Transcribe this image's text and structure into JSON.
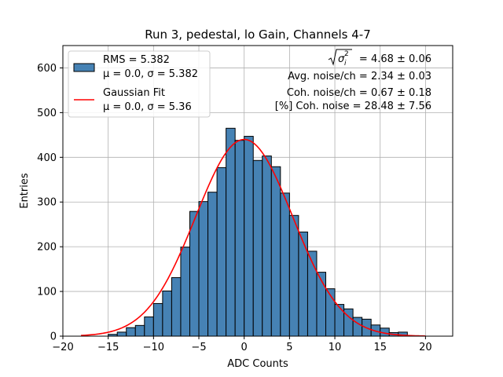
{
  "chart_data": {
    "type": "bar",
    "title": "Run 3, pedestal, lo Gain, Channels 4-7",
    "xlabel": "ADC Counts",
    "ylabel": "Entries",
    "xlim": [
      -20,
      23
    ],
    "ylim": [
      0,
      650
    ],
    "xticks": [
      -20,
      -15,
      -10,
      -5,
      0,
      5,
      10,
      15,
      20
    ],
    "yticks": [
      0,
      100,
      200,
      300,
      400,
      500,
      600
    ],
    "grid": true,
    "legend_position": "top-left",
    "bar_color": "#4682b4",
    "bin_width": 1,
    "bins": [
      {
        "left": -15,
        "count": 4
      },
      {
        "left": -14,
        "count": 9
      },
      {
        "left": -13,
        "count": 19
      },
      {
        "left": -12,
        "count": 24
      },
      {
        "left": -11,
        "count": 43
      },
      {
        "left": -10,
        "count": 73
      },
      {
        "left": -9,
        "count": 101
      },
      {
        "left": -8,
        "count": 131
      },
      {
        "left": -7,
        "count": 199
      },
      {
        "left": -6,
        "count": 279
      },
      {
        "left": -5,
        "count": 301
      },
      {
        "left": -4,
        "count": 322
      },
      {
        "left": -3,
        "count": 377
      },
      {
        "left": -2,
        "count": 465
      },
      {
        "left": -1,
        "count": 438
      },
      {
        "left": 0,
        "count": 447
      },
      {
        "left": 1,
        "count": 393
      },
      {
        "left": 2,
        "count": 403
      },
      {
        "left": 3,
        "count": 379
      },
      {
        "left": 4,
        "count": 320
      },
      {
        "left": 5,
        "count": 270
      },
      {
        "left": 6,
        "count": 233
      },
      {
        "left": 7,
        "count": 190
      },
      {
        "left": 8,
        "count": 143
      },
      {
        "left": 9,
        "count": 106
      },
      {
        "left": 10,
        "count": 71
      },
      {
        "left": 11,
        "count": 61
      },
      {
        "left": 12,
        "count": 42
      },
      {
        "left": 13,
        "count": 38
      },
      {
        "left": 14,
        "count": 25
      },
      {
        "left": 15,
        "count": 18
      },
      {
        "left": 16,
        "count": 8
      },
      {
        "left": 17,
        "count": 9
      }
    ],
    "fit": {
      "name": "Gaussian Fit",
      "mu": 0.0,
      "sigma": 5.36,
      "amplitude": 440,
      "x_range": [
        -18,
        20
      ],
      "color": "#ff0000"
    },
    "legend": [
      {
        "kind": "patch",
        "line1": "RMS = 5.382",
        "line2": "μ = 0.0, σ = 5.382",
        "color": "#4682b4"
      },
      {
        "kind": "line",
        "line1": "Gaussian Fit",
        "line2": "μ = 0.0, σ = 5.36",
        "color": "#ff0000"
      }
    ],
    "annotations": {
      "sigma_total": " = 4.68 ± 0.06",
      "avg_noise": "Avg. noise/ch = 2.34 ± 0.03",
      "coh_noise": "Coh. noise/ch = 0.67 ± 0.18",
      "pct_coh_noise": "[%] Coh. noise = 28.48 ± 7.56"
    }
  }
}
